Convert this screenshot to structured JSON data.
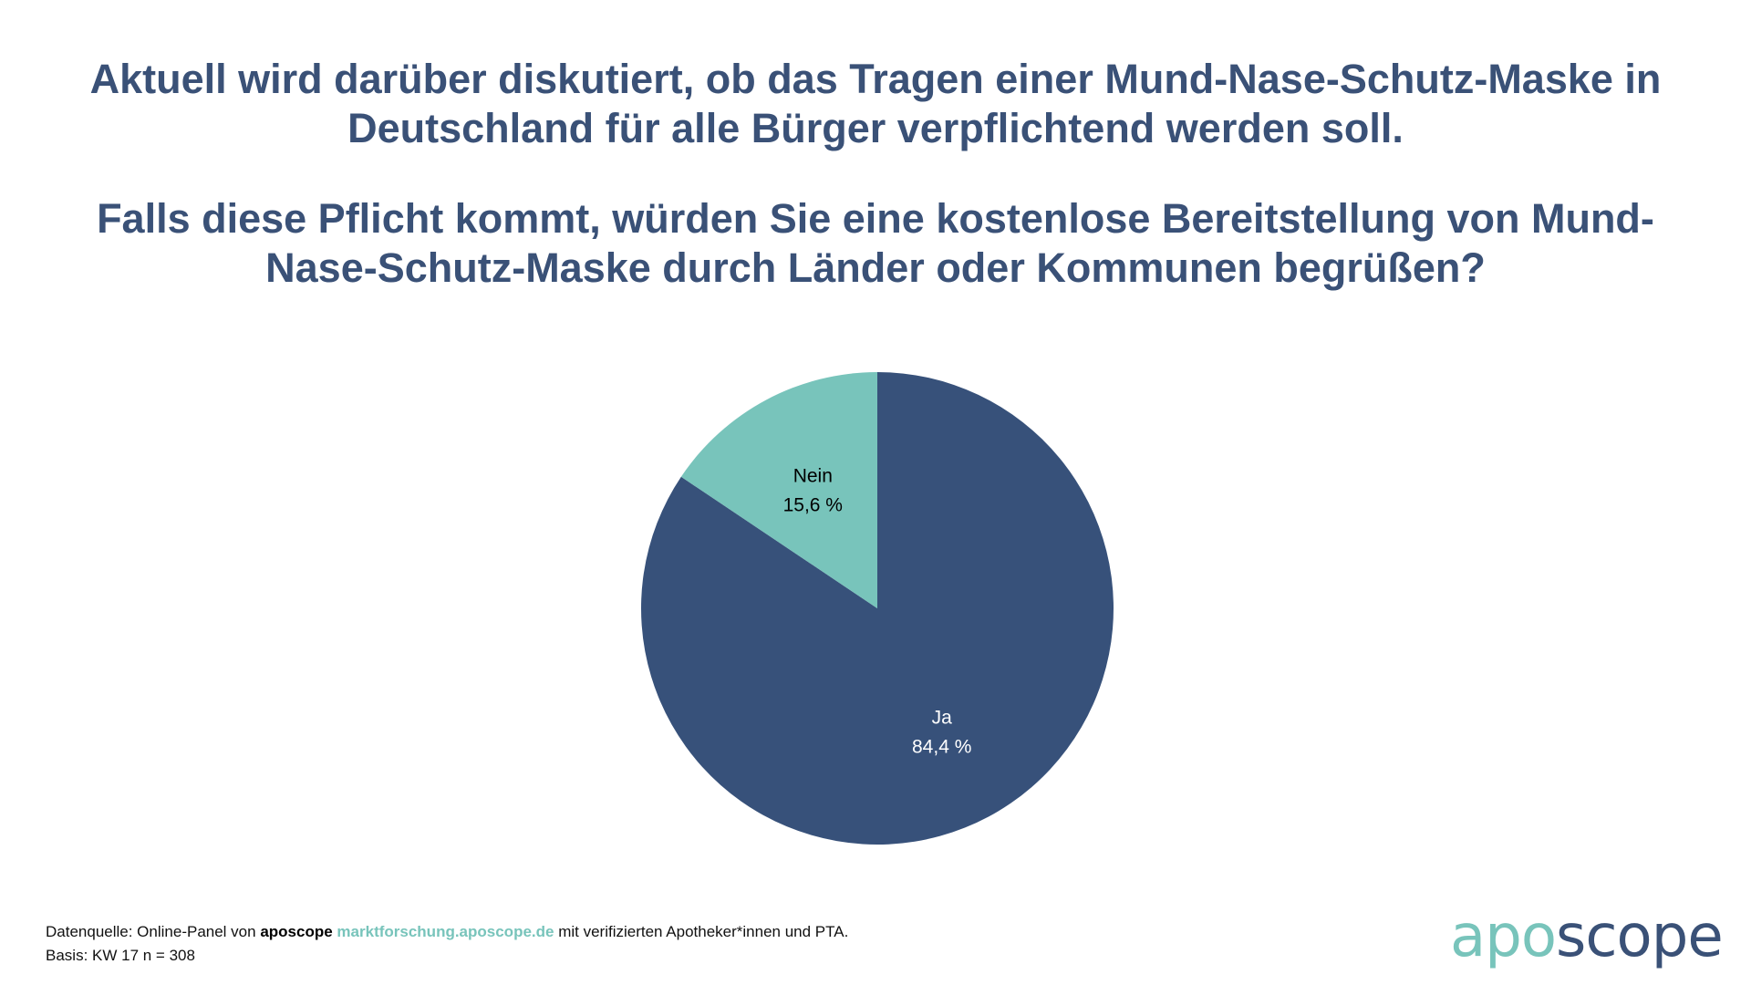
{
  "header": {
    "line1": "Aktuell wird darüber diskutiert, ob das Tragen einer Mund-Nase-Schutz-Maske in Deutschland für alle Bürger verpflichtend werden soll.",
    "line2": "Falls diese Pflicht kommt, würden Sie eine kostenlose Bereitstellung von Mund-Nase-Schutz-Maske durch Länder oder Kommunen begrüßen?"
  },
  "chart_data": {
    "type": "pie",
    "title": "Falls diese Pflicht kommt, würden Sie eine kostenlose Bereitstellung von Mund-Nase-Schutz-Maske durch Länder oder Kommunen begrüßen?",
    "slices": [
      {
        "label": "Ja",
        "value": 84.4,
        "value_label": "84,4 %",
        "color": "#37517a",
        "text_color": "#ffffff"
      },
      {
        "label": "Nein",
        "value": 15.6,
        "value_label": "15,6 %",
        "color": "#78c4bb",
        "text_color": "#000000"
      }
    ],
    "start": "12 o'clock",
    "direction": "clockwise",
    "legend": "none"
  },
  "footer": {
    "source_prefix": "Datenquelle: Online-Panel von ",
    "source_brand": "aposcope",
    "source_link": "marktforschung.aposcope.de",
    "source_suffix": " mit verifizierten Apotheker*innen und PTA.",
    "basis": "Basis: KW 17 n = 308"
  },
  "logo": {
    "part_a": "apo",
    "part_b": "scope"
  },
  "colors": {
    "title": "#3a5177",
    "accent": "#78c4bb",
    "dark": "#37517a"
  }
}
